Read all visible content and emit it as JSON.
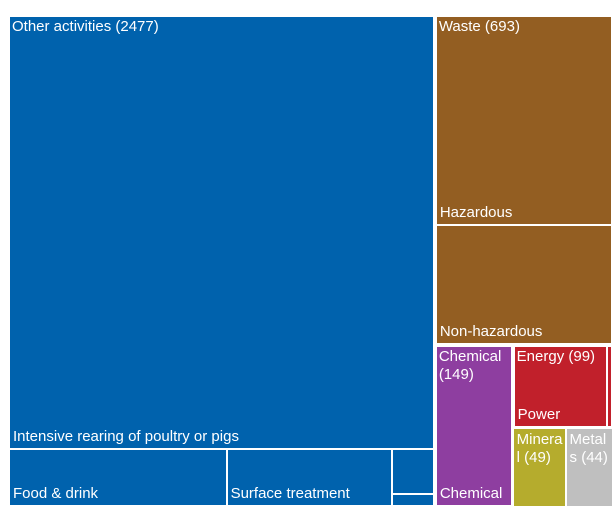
{
  "chart_data": {
    "type": "treemap",
    "groups": [
      {
        "label": "Other activities (2477)",
        "value": 2477,
        "color": "#0062ad",
        "children": [
          {
            "name": "Intensive rearing of poultry or pigs",
            "value": 2190
          },
          {
            "name": "Food & drink",
            "value": 147
          },
          {
            "name": "Surface treatment",
            "value": 112
          },
          {
            "name": null,
            "value": 22
          },
          {
            "name": null,
            "value": 6
          }
        ]
      },
      {
        "label": "Waste (693)",
        "value": 693,
        "color": "#935e22",
        "children": [
          {
            "name": "Hazardous",
            "value": 441
          },
          {
            "name": "Non-hazardous",
            "value": 252
          }
        ]
      },
      {
        "label": "Chemical (149)",
        "value": 149,
        "color": "#8e3ea0",
        "children": [
          {
            "name": "Chemical",
            "value": 149
          }
        ]
      },
      {
        "label": "Energy (99)",
        "value": 99,
        "color": "#c1202b",
        "children": [
          {
            "name": "Power",
            "value": 94
          },
          {
            "name": null,
            "value": 5
          }
        ]
      },
      {
        "label": "Mineral (49)",
        "value": 49,
        "color": "#b5ac2d",
        "children": []
      },
      {
        "label": "Metals (44)",
        "value": 44,
        "color": "#bfbfbf",
        "children": []
      }
    ]
  }
}
